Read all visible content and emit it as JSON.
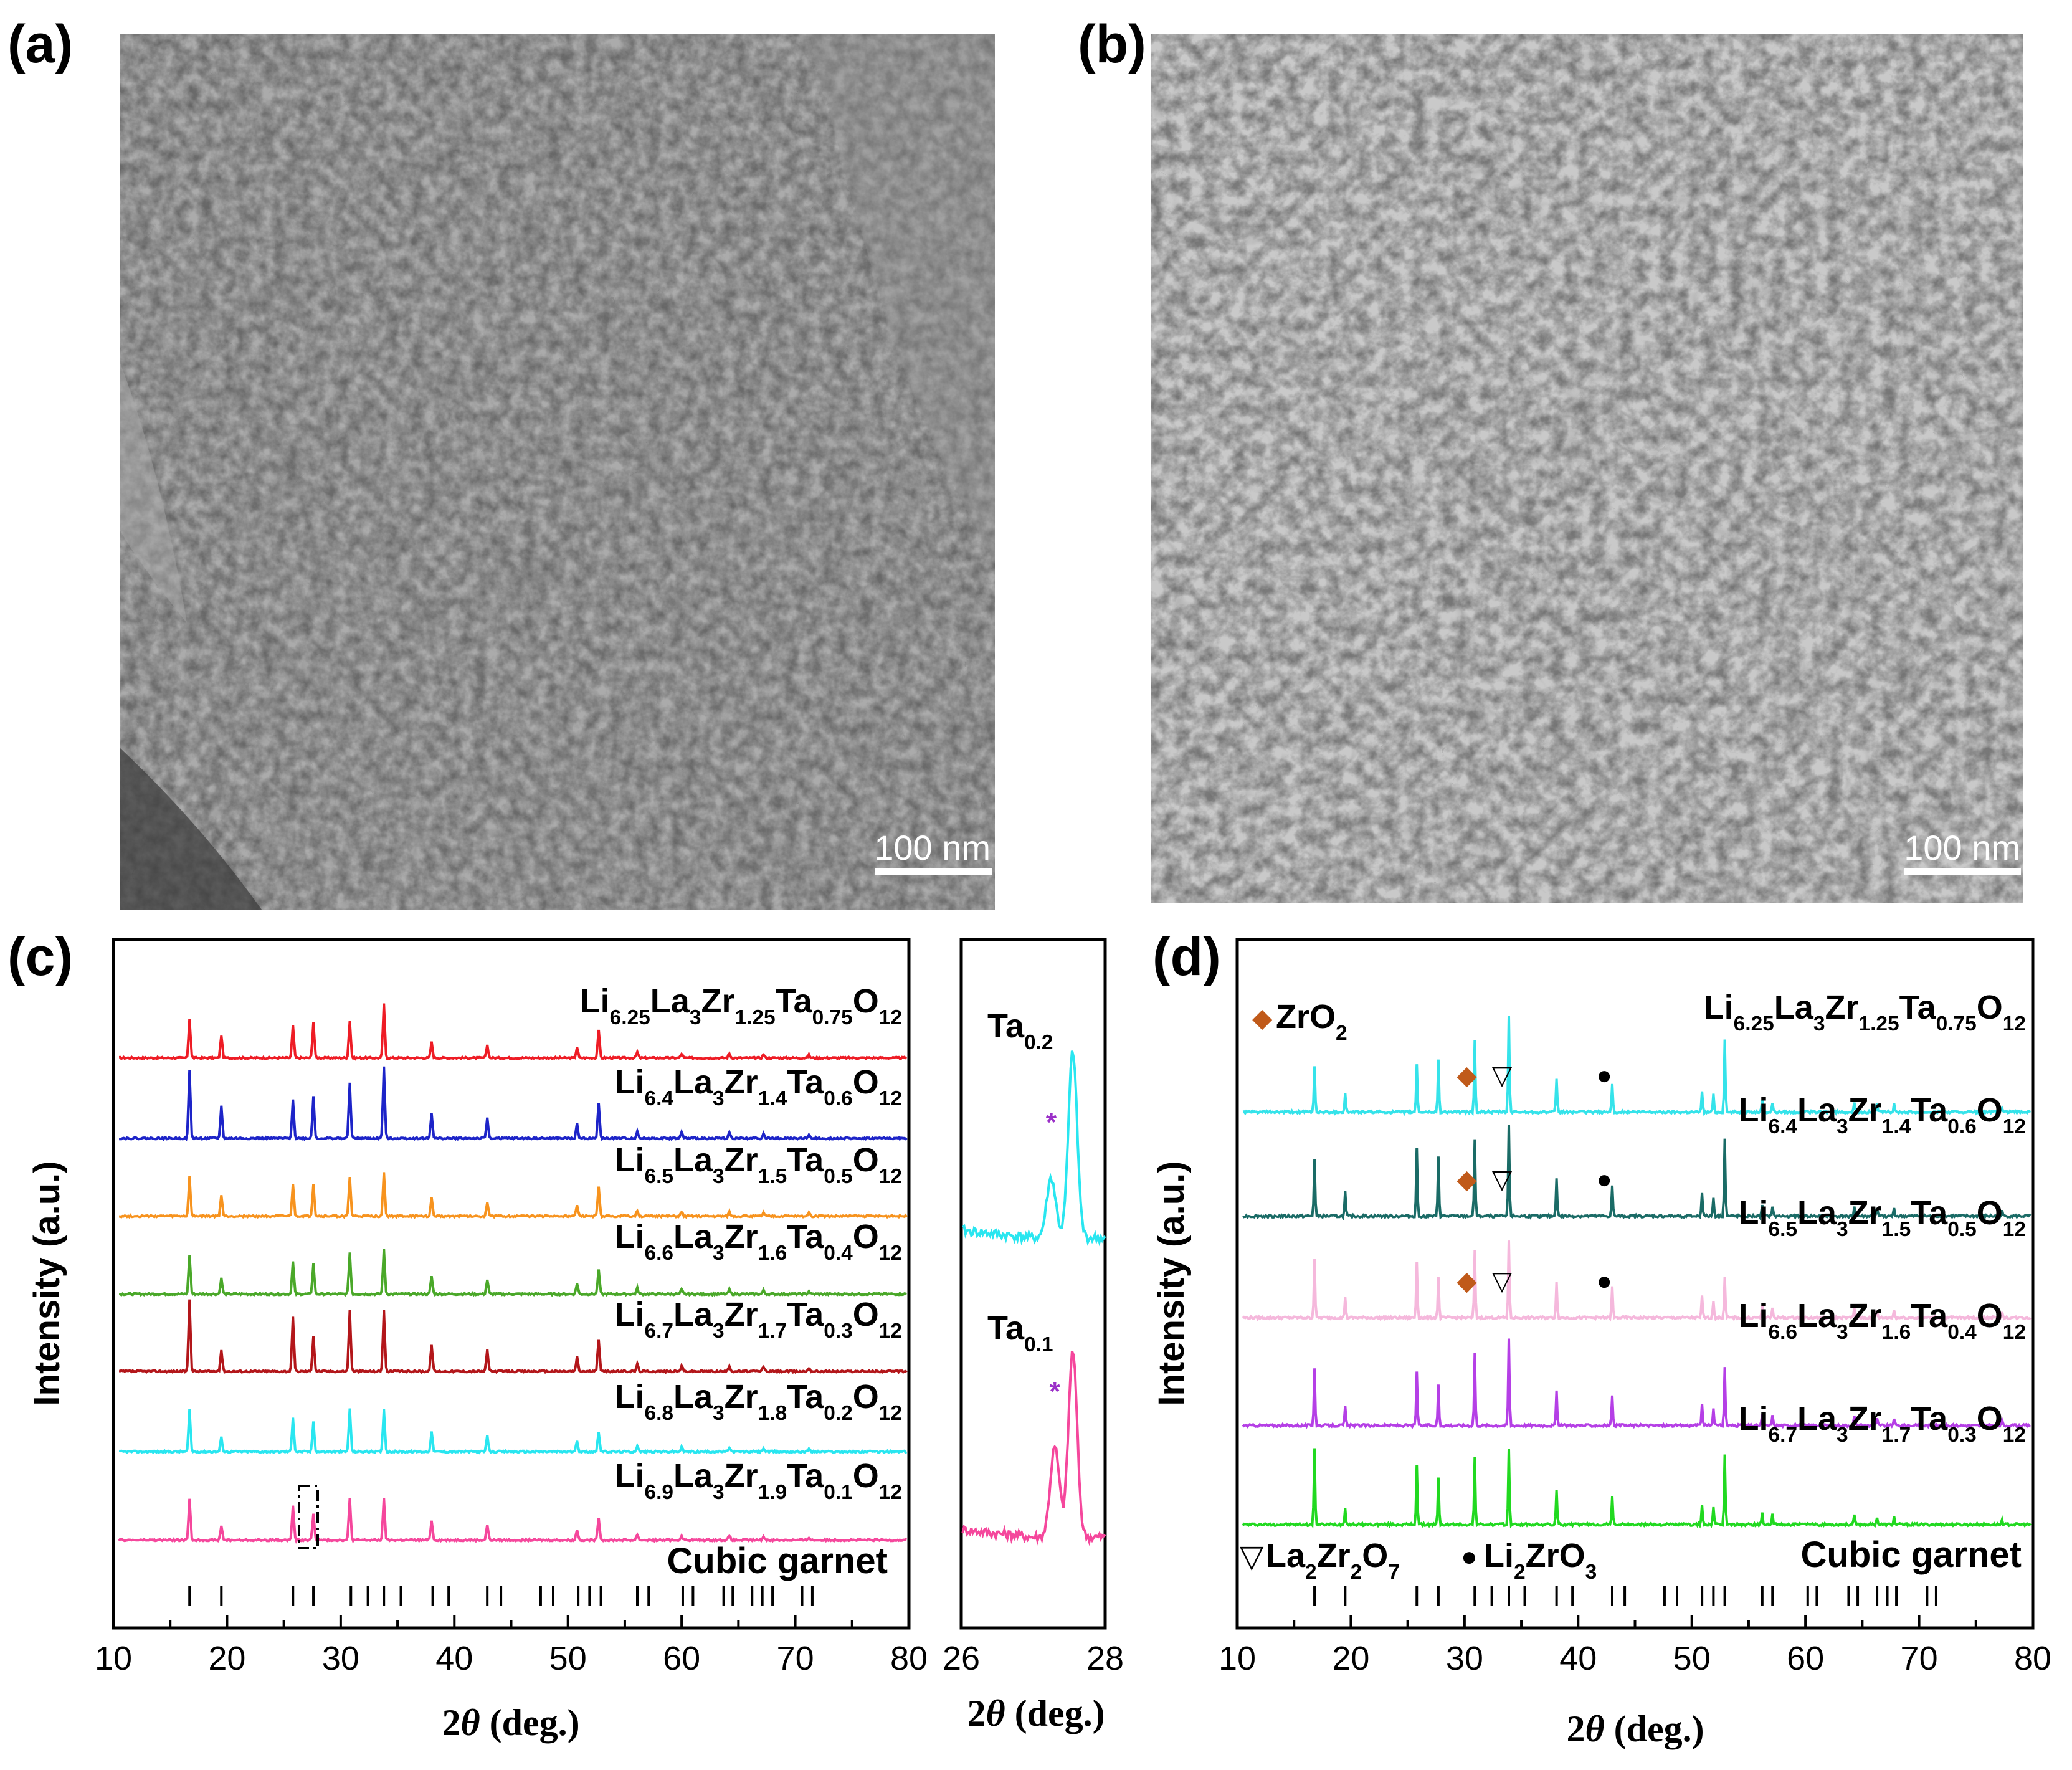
{
  "panels": {
    "a": {
      "label": "(a)",
      "scale_bar": "100 nm"
    },
    "b": {
      "label": "(b)",
      "scale_bar": "100 nm"
    },
    "c": {
      "label": "(c)"
    },
    "d": {
      "label": "(d)"
    }
  },
  "chart_data": [
    {
      "type": "line",
      "panel": "c",
      "title": "",
      "xlabel_prefix": "2",
      "xlabel_theta": "θ",
      "xlabel_suffix": " (deg.)",
      "ylabel": "Intensity (a.u.)",
      "xlim": [
        10,
        80
      ],
      "x_ticks": [
        10,
        20,
        30,
        40,
        50,
        60,
        70,
        80
      ],
      "reference_label": "Cubic garnet",
      "reference_peaks": [
        16.7,
        19.5,
        25.8,
        27.6,
        30.9,
        32.4,
        33.8,
        35.3,
        38.1,
        39.5,
        42.9,
        44.1,
        47.6,
        48.7,
        50.9,
        51.9,
        52.9,
        56.1,
        57.1,
        60.1,
        61.0,
        63.7,
        64.5,
        66.2,
        67.1,
        68.0,
        70.6,
        71.5
      ],
      "peak_positions": [
        16.7,
        19.5,
        25.8,
        27.6,
        30.8,
        33.8,
        38.0,
        42.9,
        50.8,
        52.7,
        56.1,
        60.0,
        64.2,
        67.2,
        71.2
      ],
      "series": [
        {
          "name": "Li6.25La3Zr1.25Ta0.75O12",
          "color": "#ee1c25",
          "label": [
            [
              "Li",
              ""
            ],
            [
              "6.25",
              "sub"
            ],
            [
              "La",
              ""
            ],
            [
              "3",
              "sub"
            ],
            [
              "Zr",
              ""
            ],
            [
              "1.25",
              "sub"
            ],
            [
              "Ta",
              ""
            ],
            [
              "0.75",
              "sub"
            ],
            [
              "O",
              ""
            ],
            [
              "12",
              "sub"
            ]
          ],
          "peak_heights": [
            0.55,
            0.32,
            0.45,
            0.5,
            0.52,
            0.75,
            0.22,
            0.18,
            0.15,
            0.38,
            0.08,
            0.06,
            0.06,
            0.05,
            0.04
          ]
        },
        {
          "name": "Li6.4La3Zr1.4Ta0.6O12",
          "color": "#1d24c8",
          "label": [
            [
              "Li",
              ""
            ],
            [
              "6.4",
              "sub"
            ],
            [
              "La",
              ""
            ],
            [
              "3",
              "sub"
            ],
            [
              "Zr",
              ""
            ],
            [
              "1.4",
              "sub"
            ],
            [
              "Ta",
              ""
            ],
            [
              "0.6",
              "sub"
            ],
            [
              "O",
              ""
            ],
            [
              "12",
              "sub"
            ]
          ],
          "peak_heights": [
            0.95,
            0.45,
            0.55,
            0.58,
            0.78,
            1.0,
            0.35,
            0.28,
            0.2,
            0.48,
            0.1,
            0.08,
            0.08,
            0.07,
            0.05
          ]
        },
        {
          "name": "Li6.5La3Zr1.5Ta0.5O12",
          "color": "#f7931e",
          "label": [
            [
              "Li",
              ""
            ],
            [
              "6.5",
              "sub"
            ],
            [
              "La",
              ""
            ],
            [
              "3",
              "sub"
            ],
            [
              "Zr",
              ""
            ],
            [
              "1.5",
              "sub"
            ],
            [
              "Ta",
              ""
            ],
            [
              "0.5",
              "sub"
            ],
            [
              "O",
              ""
            ],
            [
              "12",
              "sub"
            ]
          ],
          "peak_heights": [
            0.55,
            0.3,
            0.45,
            0.45,
            0.55,
            0.62,
            0.25,
            0.2,
            0.15,
            0.4,
            0.08,
            0.06,
            0.06,
            0.05,
            0.04
          ]
        },
        {
          "name": "Li6.6La3Zr1.6Ta0.4O12",
          "color": "#4aa829",
          "label": [
            [
              "Li",
              ""
            ],
            [
              "6.6",
              "sub"
            ],
            [
              "La",
              ""
            ],
            [
              "3",
              "sub"
            ],
            [
              "Zr",
              ""
            ],
            [
              "1.6",
              "sub"
            ],
            [
              "Ta",
              ""
            ],
            [
              "0.4",
              "sub"
            ],
            [
              "O",
              ""
            ],
            [
              "12",
              "sub"
            ]
          ],
          "peak_heights": [
            0.55,
            0.22,
            0.45,
            0.42,
            0.58,
            0.62,
            0.25,
            0.2,
            0.15,
            0.33,
            0.08,
            0.06,
            0.06,
            0.05,
            0.04
          ]
        },
        {
          "name": "Li6.7La3Zr1.7Ta0.3O12",
          "color": "#b3161a",
          "label": [
            [
              "Li",
              ""
            ],
            [
              "6.7",
              "sub"
            ],
            [
              "La",
              ""
            ],
            [
              "3",
              "sub"
            ],
            [
              "Zr",
              ""
            ],
            [
              "1.7",
              "sub"
            ],
            [
              "Ta",
              ""
            ],
            [
              "0.3",
              "sub"
            ],
            [
              "O",
              ""
            ],
            [
              "12",
              "sub"
            ]
          ],
          "peak_heights": [
            1.0,
            0.3,
            0.75,
            0.5,
            0.85,
            0.85,
            0.38,
            0.3,
            0.2,
            0.45,
            0.1,
            0.08,
            0.08,
            0.07,
            0.05
          ]
        },
        {
          "name": "Li6.8La3Zr1.8Ta0.2O12",
          "color": "#29e6f0",
          "label": [
            [
              "Li",
              ""
            ],
            [
              "6.8",
              "sub"
            ],
            [
              "La",
              ""
            ],
            [
              "3",
              "sub"
            ],
            [
              "Zr",
              ""
            ],
            [
              "1.8",
              "sub"
            ],
            [
              "Ta",
              ""
            ],
            [
              "0.2",
              "sub"
            ],
            [
              "O",
              ""
            ],
            [
              "12",
              "sub"
            ]
          ],
          "peak_heights": [
            0.58,
            0.2,
            0.48,
            0.42,
            0.6,
            0.6,
            0.28,
            0.22,
            0.15,
            0.28,
            0.08,
            0.06,
            0.06,
            0.05,
            0.04
          ]
        },
        {
          "name": "Li6.9La3Zr1.9Ta0.1O12",
          "color": "#f5479c",
          "label": [
            [
              "Li",
              ""
            ],
            [
              "6.9",
              "sub"
            ],
            [
              "La",
              ""
            ],
            [
              "3",
              "sub"
            ],
            [
              "Zr",
              ""
            ],
            [
              "1.9",
              "sub"
            ],
            [
              "Ta",
              ""
            ],
            [
              "0.1",
              "sub"
            ],
            [
              "O",
              ""
            ],
            [
              "12",
              "sub"
            ]
          ],
          "peak_heights": [
            0.58,
            0.2,
            0.48,
            0.38,
            0.58,
            0.58,
            0.28,
            0.22,
            0.15,
            0.32,
            0.08,
            0.06,
            0.06,
            0.05,
            0.04
          ]
        }
      ],
      "inset": {
        "xlim": [
          26,
          28
        ],
        "x_ticks": [
          26,
          28
        ],
        "xlabel_prefix": "2",
        "xlabel_theta": "θ",
        "xlabel_suffix": " (deg.)",
        "marker": "*",
        "marker_color": "#9b30c8",
        "traces": [
          {
            "name": "Ta0.2",
            "label": [
              [
                "Ta",
                ""
              ],
              [
                "0.2",
                "sub"
              ]
            ],
            "color": "#29e6f0",
            "main_peak": 27.55,
            "shoulder_peak": 27.25,
            "shoulder_height": 0.32
          },
          {
            "name": "Ta0.1",
            "label": [
              [
                "Ta",
                ""
              ],
              [
                "0.1",
                "sub"
              ]
            ],
            "color": "#f5479c",
            "main_peak": 27.55,
            "shoulder_peak": 27.3,
            "shoulder_height": 0.48
          }
        ]
      }
    },
    {
      "type": "line",
      "panel": "d",
      "xlabel_prefix": "2",
      "xlabel_theta": "θ",
      "xlabel_suffix": " (deg.)",
      "ylabel": "Intensity (a.u.)",
      "xlim": [
        10,
        80
      ],
      "x_ticks": [
        10,
        20,
        30,
        40,
        50,
        60,
        70,
        80
      ],
      "reference_label": "Cubic garnet",
      "reference_peaks": [
        16.8,
        19.5,
        25.8,
        27.7,
        30.9,
        32.4,
        33.9,
        35.3,
        38.1,
        39.5,
        43.0,
        44.1,
        47.6,
        48.7,
        50.9,
        51.9,
        52.9,
        56.2,
        57.1,
        60.2,
        61.0,
        63.8,
        64.6,
        66.3,
        67.2,
        68.0,
        70.7,
        71.5
      ],
      "legend_impurities": {
        "zro2": {
          "symbol": "◆",
          "color": "#c05a1a",
          "label": [
            [
              "ZrO",
              ""
            ],
            [
              "2",
              "sub"
            ]
          ]
        },
        "la2zr2o7": {
          "symbol": "▽",
          "label": [
            [
              "La",
              ""
            ],
            [
              "2",
              "sub"
            ],
            [
              "Zr",
              ""
            ],
            [
              "2",
              "sub"
            ],
            [
              "O",
              ""
            ],
            [
              "7",
              "sub"
            ]
          ]
        },
        "li2zro3": {
          "symbol": "●",
          "label": [
            [
              "Li",
              ""
            ],
            [
              "2",
              "sub"
            ],
            [
              "ZrO",
              ""
            ],
            [
              "3",
              "sub"
            ]
          ]
        }
      },
      "peak_positions": [
        16.8,
        19.5,
        25.8,
        27.7,
        30.9,
        33.9,
        38.1,
        43.0,
        50.9,
        51.9,
        52.9,
        56.2,
        57.1,
        64.3,
        66.3,
        67.8,
        77.3
      ],
      "series": [
        {
          "name": "Li6.25La3Zr1.25Ta0.75O12",
          "color": "#35e3ea",
          "label": [
            [
              "Li",
              ""
            ],
            [
              "6.25",
              "sub"
            ],
            [
              "La",
              ""
            ],
            [
              "3",
              "sub"
            ],
            [
              "Zr",
              ""
            ],
            [
              "1.25",
              "sub"
            ],
            [
              "Ta",
              ""
            ],
            [
              "0.75",
              "sub"
            ],
            [
              "O",
              ""
            ],
            [
              "12",
              "sub"
            ]
          ],
          "peak_heights": [
            0.48,
            0.2,
            0.5,
            0.55,
            0.75,
            1.0,
            0.35,
            0.3,
            0.22,
            0.18,
            0.75,
            0.12,
            0.1,
            0.1,
            0.08,
            0.08,
            0.05
          ],
          "impurities": [
            {
              "symbol": "zro2",
              "x": 30.2
            },
            {
              "symbol": "la2zr2o7",
              "x": 33.3
            },
            {
              "symbol": "li2zro3",
              "x": 42.3
            }
          ]
        },
        {
          "name": "Li6.4La3Zr1.4Ta0.6O12",
          "color": "#1a6b66",
          "label": [
            [
              "Li",
              ""
            ],
            [
              "6.4",
              "sub"
            ],
            [
              "La",
              ""
            ],
            [
              "3",
              "sub"
            ],
            [
              "Zr",
              ""
            ],
            [
              "1.4",
              "sub"
            ],
            [
              "Ta",
              ""
            ],
            [
              "0.6",
              "sub"
            ],
            [
              "O",
              ""
            ],
            [
              "12",
              "sub"
            ]
          ],
          "peak_heights": [
            0.6,
            0.25,
            0.7,
            0.62,
            0.8,
            0.95,
            0.4,
            0.32,
            0.25,
            0.2,
            0.8,
            0.12,
            0.1,
            0.1,
            0.08,
            0.08,
            0.05
          ],
          "impurities": [
            {
              "symbol": "zro2",
              "x": 30.2
            },
            {
              "symbol": "la2zr2o7",
              "x": 33.3
            },
            {
              "symbol": "li2zro3",
              "x": 42.3
            }
          ]
        },
        {
          "name": "Li6.5La3Zr1.5Ta0.5O12",
          "color": "#f5b8dc",
          "label": [
            [
              "Li",
              ""
            ],
            [
              "6.5",
              "sub"
            ],
            [
              "La",
              ""
            ],
            [
              "3",
              "sub"
            ],
            [
              "Zr",
              ""
            ],
            [
              "1.5",
              "sub"
            ],
            [
              "Ta",
              ""
            ],
            [
              "0.5",
              "sub"
            ],
            [
              "O",
              ""
            ],
            [
              "12",
              "sub"
            ]
          ],
          "peak_heights": [
            0.62,
            0.22,
            0.58,
            0.42,
            0.7,
            0.8,
            0.38,
            0.32,
            0.22,
            0.18,
            0.42,
            0.12,
            0.1,
            0.1,
            0.08,
            0.08,
            0.05
          ],
          "impurities": [
            {
              "symbol": "zro2",
              "x": 30.2
            },
            {
              "symbol": "la2zr2o7",
              "x": 33.3
            },
            {
              "symbol": "li2zro3",
              "x": 42.3
            }
          ]
        },
        {
          "name": "Li6.6La3Zr1.6Ta0.4O12",
          "color": "#b53fe6",
          "label": [
            [
              "Li",
              ""
            ],
            [
              "6.6",
              "sub"
            ],
            [
              "La",
              ""
            ],
            [
              "3",
              "sub"
            ],
            [
              "Zr",
              ""
            ],
            [
              "1.6",
              "sub"
            ],
            [
              "Ta",
              ""
            ],
            [
              "0.4",
              "sub"
            ],
            [
              "O",
              ""
            ],
            [
              "12",
              "sub"
            ]
          ],
          "peak_heights": [
            0.6,
            0.2,
            0.55,
            0.42,
            0.75,
            0.9,
            0.35,
            0.3,
            0.22,
            0.18,
            0.6,
            0.12,
            0.1,
            0.1,
            0.08,
            0.08,
            0.05
          ],
          "impurities": []
        },
        {
          "name": "Li6.7La3Zr1.7Ta0.3O12",
          "color": "#21d920",
          "label": [
            [
              "Li",
              ""
            ],
            [
              "6.7",
              "sub"
            ],
            [
              "La",
              ""
            ],
            [
              "3",
              "sub"
            ],
            [
              "Zr",
              ""
            ],
            [
              "1.7",
              "sub"
            ],
            [
              "Ta",
              ""
            ],
            [
              "0.3",
              "sub"
            ],
            [
              "O",
              ""
            ],
            [
              "12",
              "sub"
            ]
          ],
          "peak_heights": [
            0.8,
            0.18,
            0.62,
            0.48,
            0.7,
            0.78,
            0.35,
            0.3,
            0.2,
            0.18,
            0.72,
            0.12,
            0.1,
            0.1,
            0.08,
            0.08,
            0.05
          ],
          "impurities": []
        }
      ]
    }
  ]
}
